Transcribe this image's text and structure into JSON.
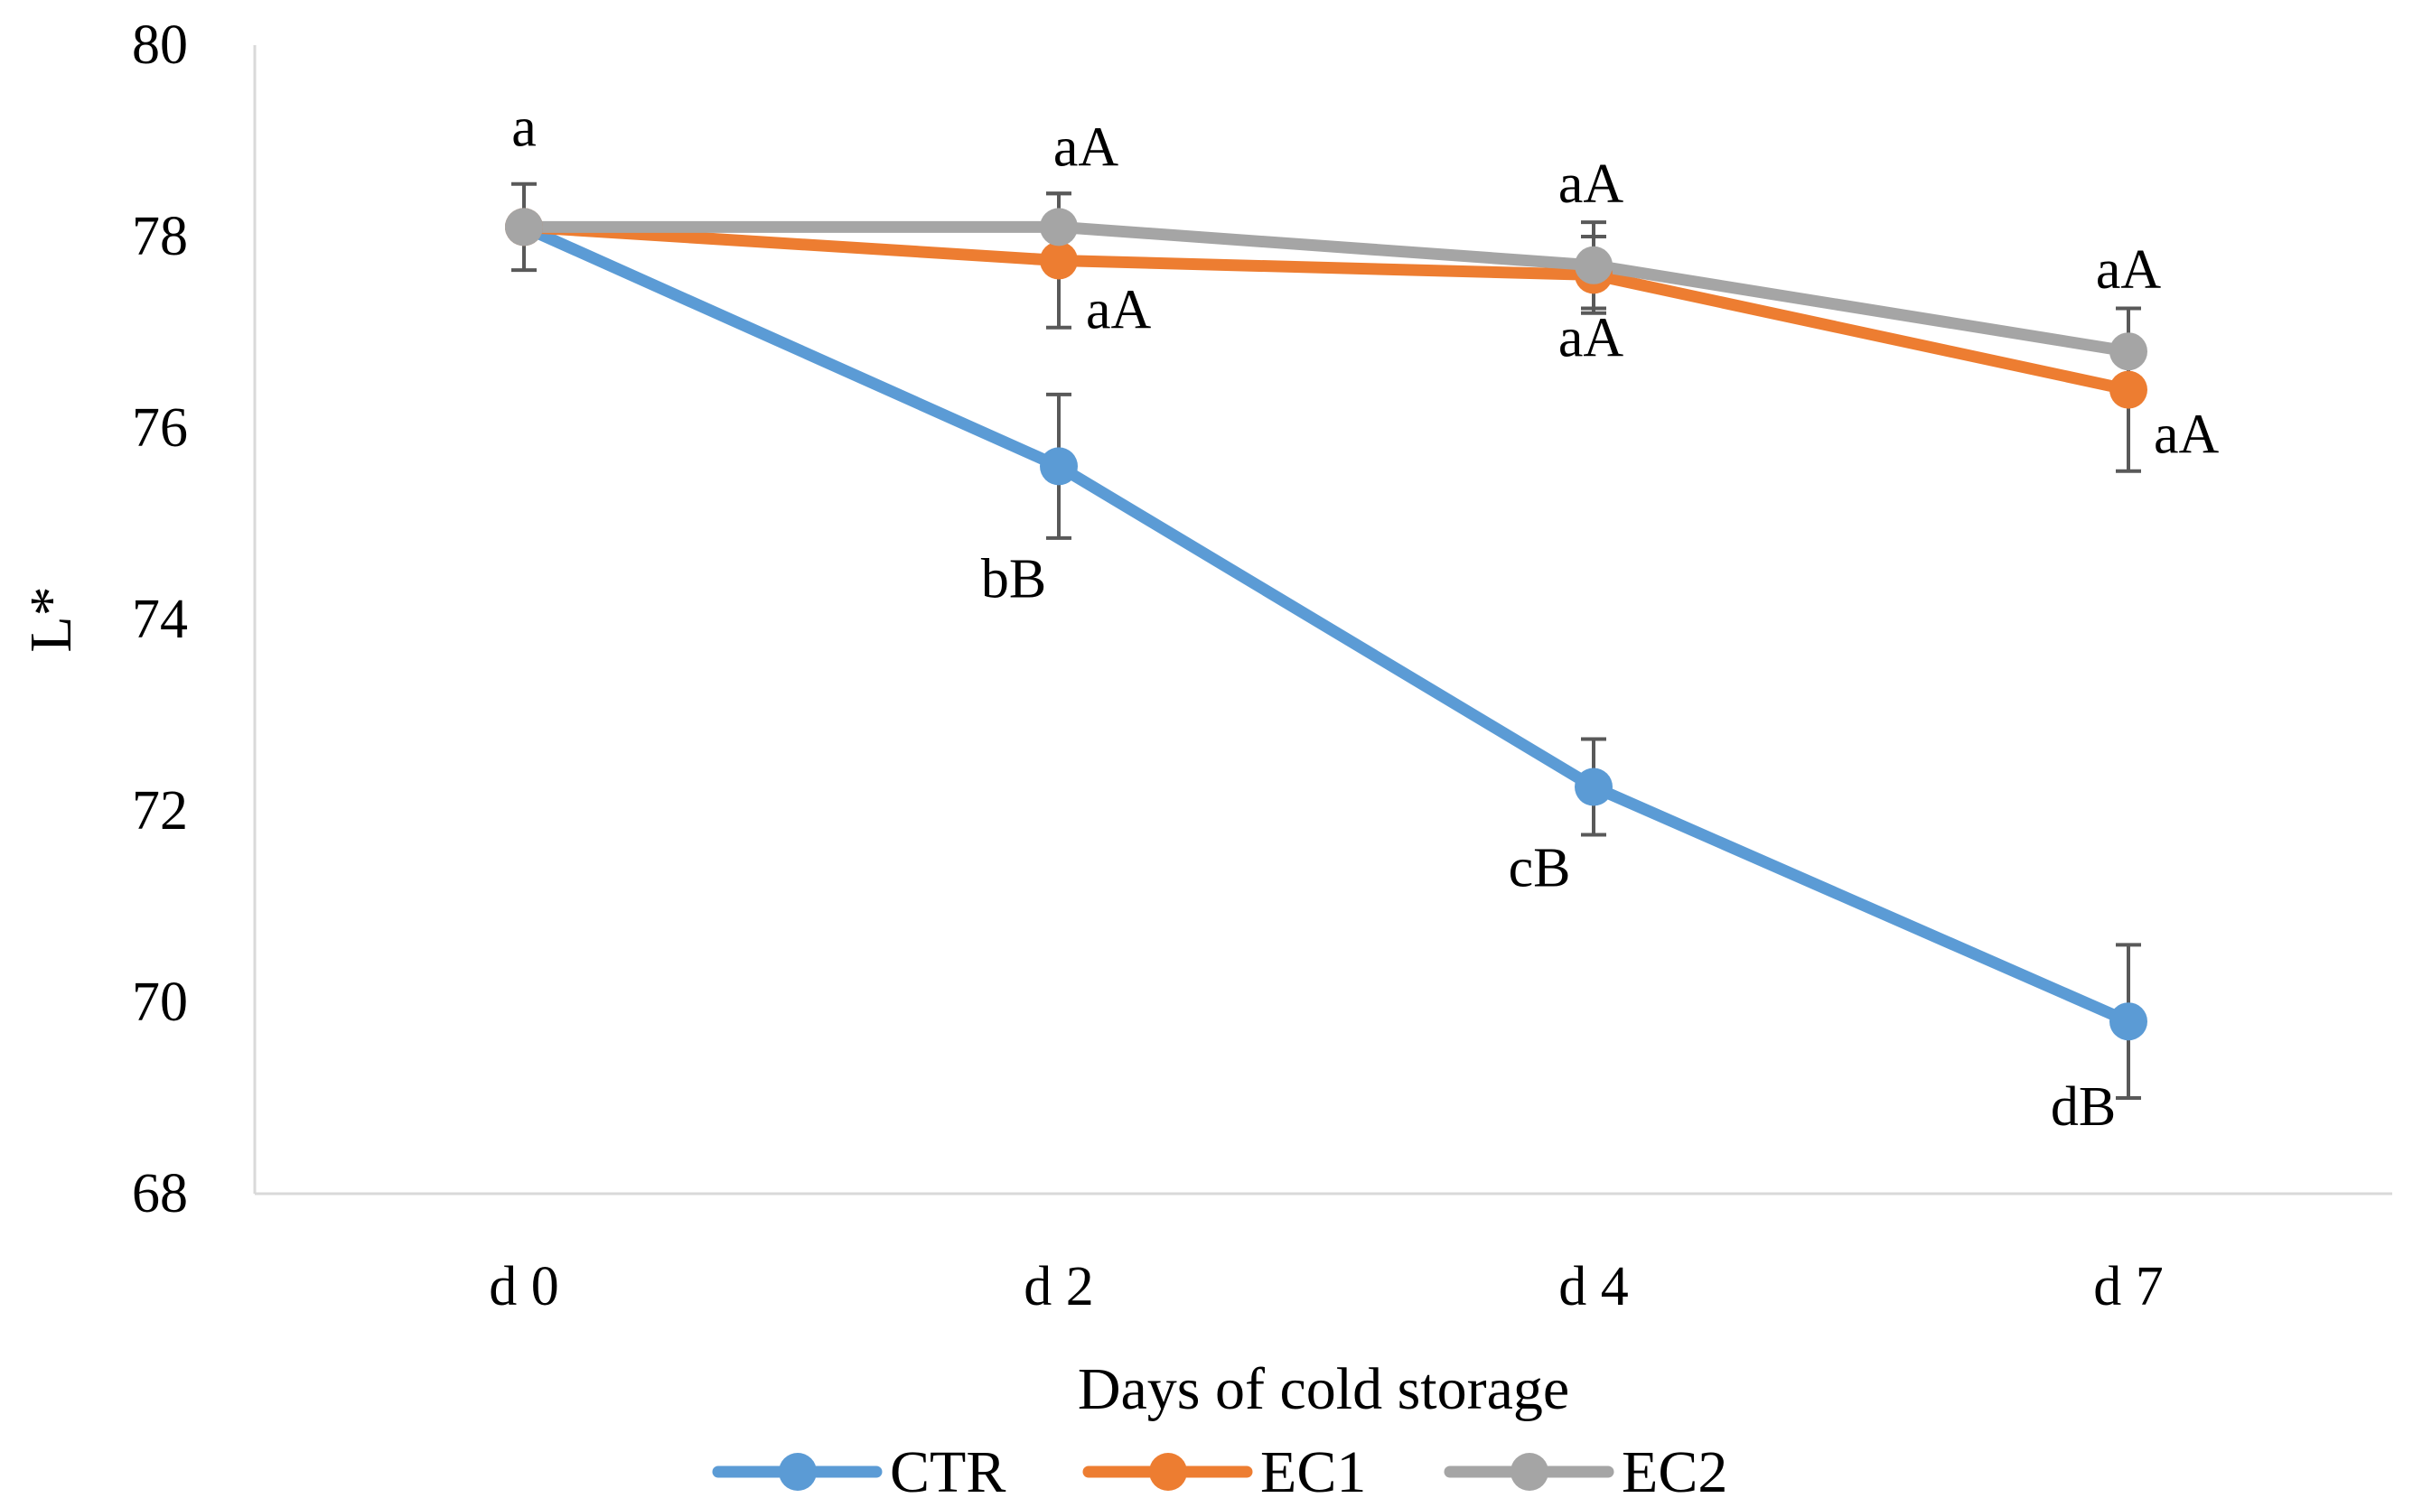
{
  "chart_data": {
    "type": "line",
    "title": "",
    "xlabel": "Days of cold storage",
    "ylabel": "L*",
    "categories": [
      "d 0",
      "d 2",
      "d 4",
      "d 7"
    ],
    "ylim": [
      68,
      80
    ],
    "yticks": [
      68,
      70,
      72,
      74,
      76,
      78,
      80
    ],
    "grid": false,
    "legend_position": "bottom",
    "series": [
      {
        "name": "CTR",
        "color": "#5B9BD5",
        "values": [
          78.1,
          75.6,
          72.25,
          69.8
        ],
        "errors": [
          0.45,
          0.75,
          0.5,
          0.8
        ],
        "labels": [
          "a",
          "bB",
          "cB",
          "dB"
        ]
      },
      {
        "name": "EC1",
        "color": "#ED7D31",
        "values": [
          78.1,
          77.75,
          77.6,
          76.4
        ],
        "errors": [
          0.0,
          0.7,
          0.4,
          0.85
        ],
        "labels": [
          "",
          "aA",
          "aA",
          "aA"
        ]
      },
      {
        "name": "EC2",
        "color": "#A5A5A5",
        "values": [
          78.1,
          78.1,
          77.7,
          76.8
        ],
        "errors": [
          0.0,
          0.35,
          0.45,
          0.45
        ],
        "labels": [
          "",
          "aA",
          "aA",
          "aA"
        ]
      }
    ]
  }
}
